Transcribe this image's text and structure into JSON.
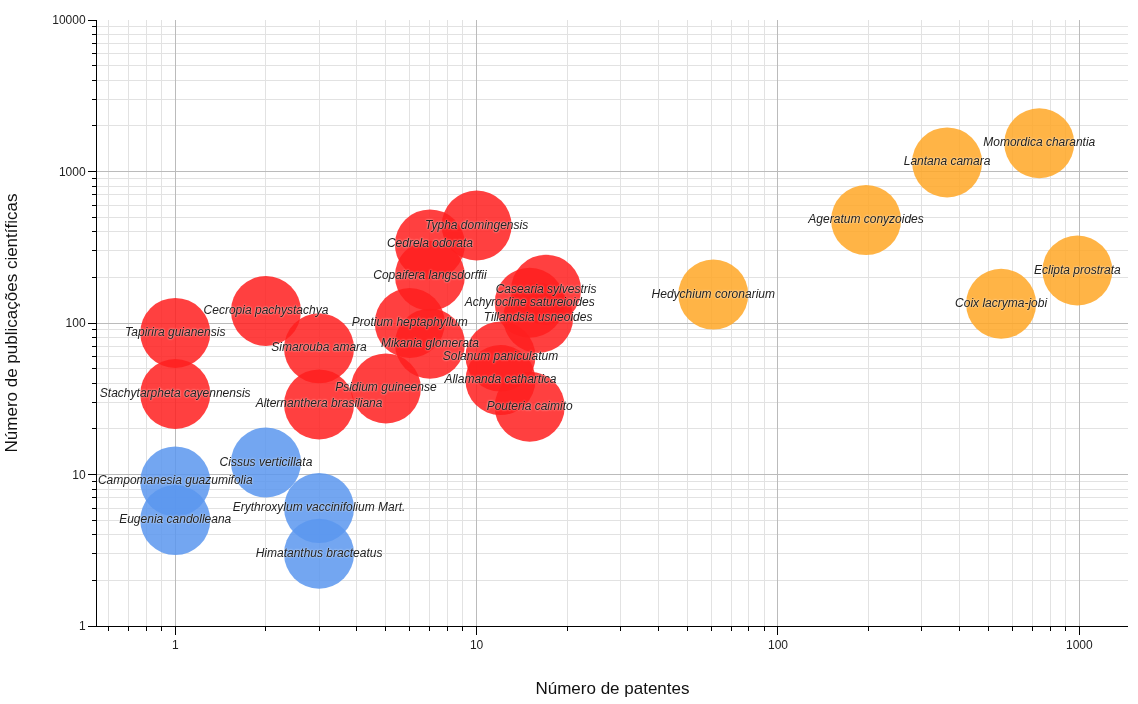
{
  "chart_data": {
    "type": "scatter",
    "xlabel": "Número de patentes",
    "ylabel": "Número de publicações científicas",
    "log": "xy",
    "grid": true,
    "marker": "circle",
    "xlim": [
      0.55,
      1450
    ],
    "xticks": [
      1,
      10,
      100,
      1000
    ],
    "ylim": [
      1,
      10000
    ],
    "yticks": [
      1,
      10,
      100,
      1000,
      10000
    ],
    "series": [
      {
        "color": "#ff1f1f",
        "x": [
          1,
          1,
          2,
          3,
          3,
          5,
          6,
          7,
          10,
          7,
          7,
          17,
          15,
          16,
          12,
          12,
          15
        ],
        "values": [
          86,
          34,
          120,
          68,
          29,
          37,
          100,
          73,
          440,
          330,
          205,
          166,
          136,
          108,
          60,
          42,
          28
        ],
        "value_labels": [
          "Tapirira guianensis",
          "Stachytarpheta cayennensis",
          "Cecropia pachystachya",
          "Simarouba amara",
          "Alternanthera brasiliana",
          "Psidium guineense",
          "Protium heptaphyllum",
          "Mikania glomerata",
          "Typha domingensis",
          "Cedrela odorata",
          "Copaifera langsdorffii",
          "Casearia sylvestris",
          "Achyrocline satureioides",
          "Tillandsia usneoides",
          "Solanum paniculatum",
          "Allamanda cathartica",
          "Pouteria caimito"
        ]
      },
      {
        "color": "#5b97ee",
        "x": [
          1,
          1,
          2,
          3,
          3
        ],
        "values": [
          9,
          5,
          12,
          6,
          3
        ],
        "value_labels": [
          "Campomanesia guazumifolia",
          "Eugenia candolleana",
          "Cissus verticillata",
          "Erythroxylum vaccinifolium Mart.",
          "Himatanthus bracteatus"
        ]
      },
      {
        "color": "#ffa726",
        "x": [
          61,
          196,
          364,
          736,
          985,
          550
        ],
        "values": [
          154,
          478,
          1148,
          1537,
          222,
          134
        ],
        "value_labels": [
          "Hedychium coronarium",
          "Ageratum conyzoides",
          "Lantana camara",
          "Momordica charantia",
          "Eclipta prostrata",
          "Coix lacryma-jobi"
        ]
      }
    ]
  }
}
